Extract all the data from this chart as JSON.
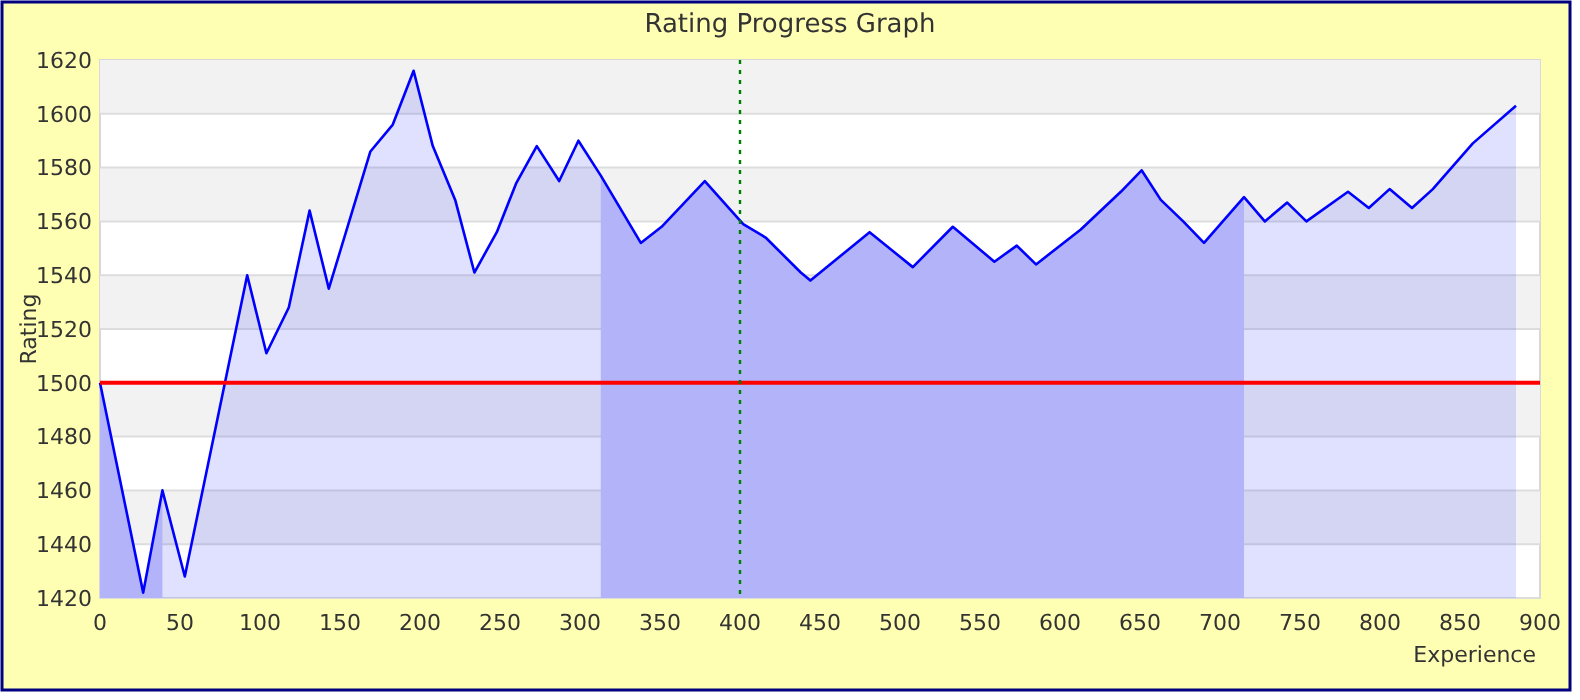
{
  "chart_data": {
    "type": "area",
    "title": "Rating Progress Graph",
    "xlabel": "Experience",
    "ylabel": "Rating",
    "x": [
      0,
      27,
      39,
      53,
      92,
      104,
      118,
      131,
      143,
      169,
      183,
      196,
      208,
      222,
      234,
      248,
      260,
      273,
      287,
      299,
      313,
      338,
      351,
      378,
      402,
      416,
      438,
      444,
      481,
      508,
      533,
      559,
      573,
      585,
      613,
      638,
      651,
      663,
      677,
      690,
      715,
      728,
      742,
      754,
      780,
      793,
      806,
      820,
      833,
      858,
      885
    ],
    "series": [
      {
        "color": "#0000ff",
        "values": [
          1500,
          1422,
          1460,
          1428,
          1540,
          1511,
          1528,
          1564,
          1535,
          1586,
          1596,
          1616,
          1588,
          1568,
          1541,
          1556,
          1574,
          1588,
          1575,
          1590,
          1577,
          1552,
          1558,
          1575,
          1559,
          1554,
          1541,
          1538,
          1556,
          1543,
          1558,
          1545,
          1551,
          1544,
          1557,
          1571,
          1579,
          1568,
          1560,
          1552,
          1569,
          1560,
          1567,
          1560,
          1571,
          1565,
          1572,
          1565,
          1572,
          1589,
          1603
        ]
      }
    ],
    "xlim": [
      0,
      900
    ],
    "ylim": [
      1420,
      1620
    ],
    "xticks": [
      0,
      50,
      100,
      150,
      200,
      250,
      300,
      350,
      400,
      450,
      500,
      550,
      600,
      650,
      700,
      750,
      800,
      850,
      900
    ],
    "yticks": [
      1420,
      1440,
      1460,
      1480,
      1500,
      1520,
      1540,
      1560,
      1580,
      1600,
      1620
    ],
    "grid": "y",
    "marker": "none",
    "line_style": "solid",
    "ref_lines": [
      {
        "axis": "y",
        "value": 1500,
        "color": "#ff0000",
        "line_style": "solid"
      },
      {
        "axis": "x",
        "value": 400,
        "color": "#008000",
        "line_style": "dotted"
      }
    ],
    "bands": [
      {
        "axis": "x",
        "from": 0,
        "to": 39,
        "color": "#ccccfa"
      },
      {
        "axis": "x",
        "from": 313,
        "to": 715,
        "color": "#ccccfa"
      }
    ]
  }
}
